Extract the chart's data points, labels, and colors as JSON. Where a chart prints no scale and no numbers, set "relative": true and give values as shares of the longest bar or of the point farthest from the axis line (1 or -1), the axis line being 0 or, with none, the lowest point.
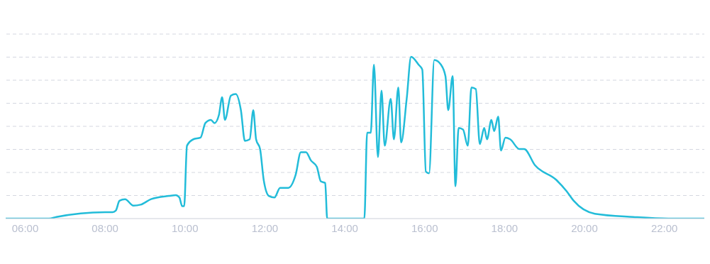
{
  "chart_data": {
    "type": "line",
    "relative": true,
    "grid": "y",
    "marker": "none",
    "line_style": "solid",
    "xlim": [
      5.37,
      23.0
    ],
    "xticks": [
      {
        "value": 6,
        "label": "06:00"
      },
      {
        "value": 8,
        "label": "08:00"
      },
      {
        "value": 10,
        "label": "10:00"
      },
      {
        "value": 12,
        "label": "12:00"
      },
      {
        "value": 14,
        "label": "14:00"
      },
      {
        "value": 16,
        "label": "16:00"
      },
      {
        "value": 18,
        "label": "18:00"
      },
      {
        "value": 20,
        "label": "20:00"
      },
      {
        "value": 22,
        "label": "22:00"
      }
    ],
    "x": [
      5.37,
      6.6,
      6.78,
      8.0,
      8.19,
      8.27,
      8.36,
      8.5,
      8.71,
      8.89,
      9.15,
      9.6,
      9.77,
      9.86,
      9.93,
      9.98,
      10.05,
      10.21,
      10.39,
      10.51,
      10.65,
      10.74,
      10.85,
      10.93,
      11.0,
      11.15,
      11.27,
      11.4,
      11.5,
      11.62,
      11.71,
      11.78,
      11.88,
      11.97,
      12.1,
      12.24,
      12.38,
      12.59,
      12.77,
      12.9,
      13.03,
      13.15,
      13.3,
      13.4,
      13.51,
      13.56,
      14.49,
      14.56,
      14.65,
      14.73,
      14.83,
      14.92,
      15.0,
      15.15,
      15.23,
      15.34,
      15.41,
      15.55,
      15.66,
      15.85,
      15.94,
      16.03,
      16.11,
      16.24,
      16.41,
      16.52,
      16.59,
      16.7,
      16.77,
      16.85,
      16.96,
      17.08,
      17.17,
      17.28,
      17.38,
      17.49,
      17.56,
      17.67,
      17.74,
      17.84,
      17.91,
      18.02,
      18.14,
      18.37,
      18.49,
      18.76,
      19.29,
      19.55,
      19.73,
      20.26,
      21.22,
      22.1,
      23.0
    ],
    "series": [
      {
        "color": "#22bcd9",
        "values": [
          0,
          0,
          0.01,
          0.04,
          0.04,
          0.05,
          0.11,
          0.12,
          0.08,
          0.086,
          0.12,
          0.14,
          0.145,
          0.13,
          0.077,
          0.077,
          0.45,
          0.49,
          0.5,
          0.59,
          0.61,
          0.59,
          0.64,
          0.75,
          0.61,
          0.76,
          0.77,
          0.67,
          0.48,
          0.49,
          0.67,
          0.49,
          0.43,
          0.24,
          0.14,
          0.13,
          0.19,
          0.19,
          0.27,
          0.41,
          0.41,
          0.36,
          0.32,
          0.23,
          0.22,
          0,
          0,
          0.53,
          0.53,
          0.95,
          0.38,
          0.79,
          0.45,
          0.74,
          0.49,
          0.81,
          0.47,
          0.74,
          1.0,
          0.95,
          0.92,
          0.29,
          0.28,
          0.98,
          0.95,
          0.88,
          0.67,
          0.88,
          0.2,
          0.56,
          0.55,
          0.45,
          0.81,
          0.8,
          0.46,
          0.56,
          0.49,
          0.61,
          0.54,
          0.63,
          0.42,
          0.5,
          0.49,
          0.43,
          0.43,
          0.33,
          0.24,
          0.17,
          0.11,
          0.03,
          0.01,
          0,
          0
        ]
      }
    ]
  }
}
